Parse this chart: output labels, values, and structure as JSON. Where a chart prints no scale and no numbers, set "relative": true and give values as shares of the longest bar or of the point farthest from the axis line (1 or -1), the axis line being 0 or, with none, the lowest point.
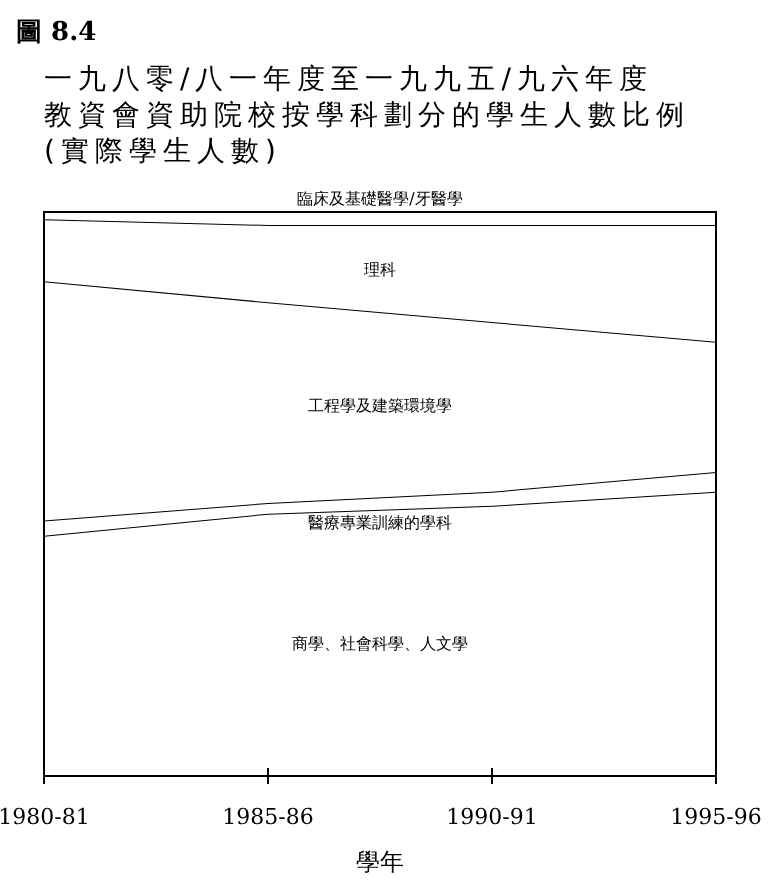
{
  "chart_data": {
    "type": "area",
    "stacked": true,
    "relative": true,
    "title": "圖 8.4",
    "subtitle": "一九八零/八一年度至一九九五/九六年度",
    "annotations": [
      "教資會資助院校按學科劃分的學生人數比例",
      "(實際學生人數)"
    ],
    "xlabel": "學年",
    "categories": [
      "1980-81",
      "1985-86",
      "1990-91",
      "1995-96"
    ],
    "series": [
      {
        "name": "商學、社會科學、人文學",
        "color": "#000000",
        "values": [
          0.426,
          0.465,
          0.479,
          0.504
        ]
      },
      {
        "name": "醫療專業訓練的學科",
        "color": "#000000",
        "values": [
          0.027,
          0.019,
          0.025,
          0.035
        ]
      },
      {
        "name": "工程學及建築環境學",
        "color": "#000000",
        "values": [
          0.424,
          0.356,
          0.301,
          0.231
        ]
      },
      {
        "name": "理科",
        "color": "#000000",
        "values": [
          0.11,
          0.137,
          0.172,
          0.207
        ]
      },
      {
        "name": "臨床及基礎醫學/牙醫學",
        "color": "#000000",
        "values": [
          0.013,
          0.023,
          0.023,
          0.023
        ]
      }
    ]
  }
}
